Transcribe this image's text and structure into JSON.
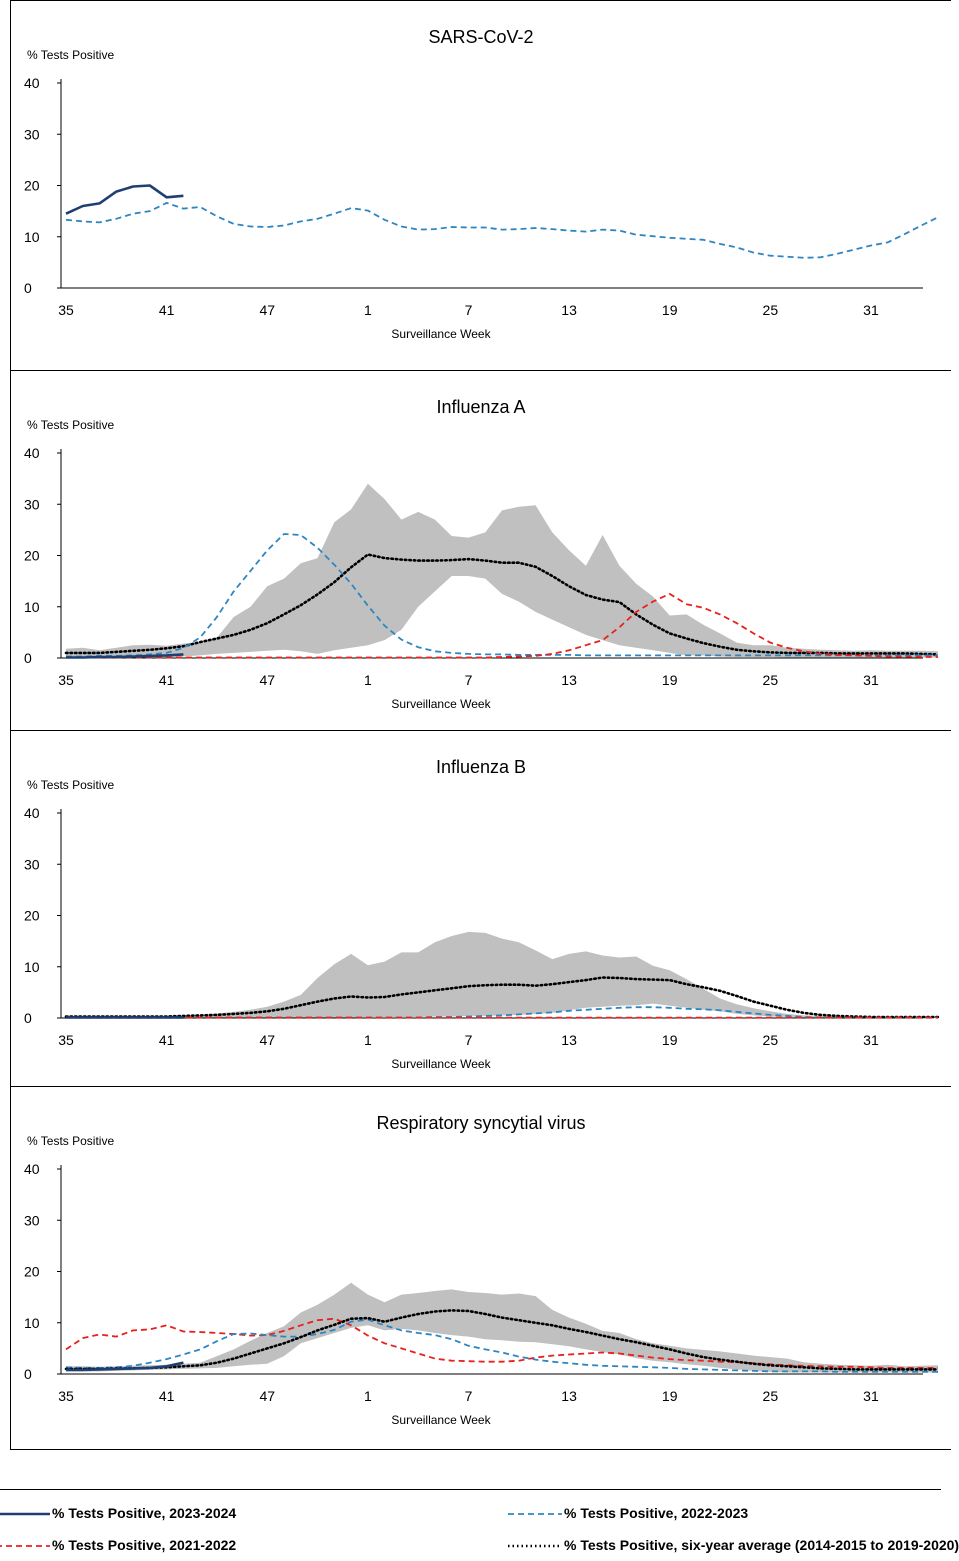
{
  "colors": {
    "s2324": "#1f3f73",
    "s2223": "#2e86c1",
    "s2122": "#e8201e",
    "avg": "#000000",
    "band": "#c0c0c0"
  },
  "chart_data": [
    {
      "type": "line",
      "title": "SARS-CoV-2",
      "ylabel": "% Tests Positive",
      "xlabel": "Surveillance Week",
      "ylim": [
        0,
        40
      ],
      "yticks": [
        "0",
        "10",
        "20",
        "30",
        "40"
      ],
      "xtick_labels": [
        "35",
        "41",
        "47",
        "1",
        "7",
        "13",
        "19",
        "25",
        "31"
      ],
      "series": [
        {
          "key": "s2324",
          "values": [
            14.5,
            16,
            16.5,
            18.8,
            19.8,
            20,
            17.7,
            18
          ]
        },
        {
          "key": "s2223",
          "values": [
            13.3,
            13,
            12.8,
            13.5,
            14.5,
            15,
            16.6,
            15.5,
            15.8,
            14,
            12.5,
            12,
            11.9,
            12.2,
            13,
            13.5,
            14.5,
            15.6,
            15.1,
            13.3,
            12,
            11.4,
            11.5,
            11.9,
            11.8,
            11.8,
            11.4,
            11.5,
            11.7,
            11.5,
            11.2,
            11,
            11.4,
            11.2,
            10.4,
            10.1,
            9.8,
            9.6,
            9.4,
            8.6,
            7.9,
            6.9,
            6.3,
            6.1,
            5.9,
            6.0,
            6.7,
            7.5,
            8.3,
            8.9,
            10.5,
            12.2,
            13.8
          ]
        }
      ]
    },
    {
      "type": "line",
      "title": "Influenza A",
      "ylabel": "% Tests Positive",
      "xlabel": "Surveillance Week",
      "ylim": [
        0,
        40
      ],
      "yticks": [
        "0",
        "10",
        "20",
        "30",
        "40"
      ],
      "xtick_labels": [
        "35",
        "41",
        "47",
        "1",
        "7",
        "13",
        "19",
        "25",
        "31"
      ],
      "band_upper": [
        1.8,
        2.0,
        1.5,
        2.0,
        2.5,
        2.6,
        2.4,
        2.8,
        3,
        4,
        8,
        10,
        14,
        15.5,
        18.5,
        19.5,
        26.5,
        29,
        34,
        31,
        27,
        28.5,
        27,
        23.8,
        23.5,
        24.5,
        28.8,
        29.5,
        29.8,
        24.5,
        21,
        18,
        24,
        18,
        14.5,
        12,
        8.3,
        8.5,
        6.5,
        4.8,
        3,
        2.5,
        2.5,
        2.0,
        1.8,
        1.6,
        1.5,
        1.4,
        1.5,
        1.4,
        1.4,
        1.4,
        1.3
      ],
      "band_lower": [
        0.2,
        0.2,
        0.2,
        0.2,
        0.2,
        0.2,
        0.2,
        0.3,
        0.5,
        0.8,
        1.0,
        1.2,
        1.4,
        1.6,
        1.3,
        0.8,
        1.5,
        2,
        2.5,
        3.5,
        5.5,
        10,
        13,
        16,
        16,
        15.5,
        12.5,
        11,
        9,
        7.5,
        6,
        4.5,
        3.5,
        2.5,
        2,
        1.5,
        1,
        0.5,
        0.5,
        0.3,
        0.2,
        0.2,
        0.2,
        0.1,
        0.1,
        0.1,
        0.1,
        0.1,
        0.1,
        0.1,
        0.1,
        0.1,
        0.1
      ],
      "series": [
        {
          "key": "avg",
          "values": [
            1,
            1,
            1,
            1.2,
            1.4,
            1.6,
            1.9,
            2.3,
            3.1,
            3.8,
            4.5,
            5.5,
            6.8,
            8.5,
            10.3,
            12.4,
            14.8,
            17.7,
            20.2,
            19.5,
            19.2,
            19.0,
            19.0,
            19.1,
            19.3,
            19.0,
            18.6,
            18.6,
            17.8,
            16.0,
            14,
            12.3,
            11.4,
            10.9,
            8.5,
            6.5,
            4.8,
            3.8,
            2.9,
            2.2,
            1.6,
            1.3,
            1.1,
            1.0,
            1.0,
            1.0,
            0.9,
            0.9,
            0.9,
            0.9,
            0.9,
            0.8,
            0.7
          ]
        },
        {
          "key": "s2223",
          "values": [
            0.3,
            0.3,
            0.4,
            0.4,
            0.5,
            0.7,
            1,
            2,
            4,
            8,
            13,
            17,
            21,
            24.2,
            24,
            21.5,
            18.2,
            14.5,
            10.2,
            6.3,
            3.6,
            2.1,
            1.3,
            1.0,
            0.8,
            0.7,
            0.7,
            0.6,
            0.6,
            0.6,
            0.6,
            0.5,
            0.5,
            0.5,
            0.5,
            0.5,
            0.5,
            0.5,
            0.5,
            0.5,
            0.5,
            0.5,
            0.5,
            0.5,
            0.5,
            0.5,
            0.5,
            0.5,
            0.5,
            0.5,
            0.5,
            0.5,
            0.5
          ]
        },
        {
          "key": "s2122",
          "values": [
            0.1,
            0.1,
            0.1,
            0.1,
            0.1,
            0.1,
            0.1,
            0.1,
            0.1,
            0.1,
            0.1,
            0.1,
            0.1,
            0.1,
            0.1,
            0.1,
            0.1,
            0.1,
            0.1,
            0.1,
            0.1,
            0.1,
            0.1,
            0.1,
            0.1,
            0.1,
            0.2,
            0.3,
            0.4,
            0.8,
            1.5,
            2.5,
            3.5,
            6,
            9,
            11,
            12.5,
            10.5,
            9.8,
            8.5,
            6.8,
            4.8,
            3.0,
            2.0,
            1.3,
            0.8,
            0.6,
            0.5,
            0.4,
            0.3,
            0.3,
            0.2,
            0.2
          ]
        },
        {
          "key": "s2324",
          "values": [
            0.1,
            0.1,
            0.2,
            0.2,
            0.3,
            0.4,
            0.5,
            0.7
          ]
        }
      ]
    },
    {
      "type": "line",
      "title": "Influenza B",
      "ylabel": "% Tests Positive",
      "xlabel": "Surveillance Week",
      "ylim": [
        0,
        40
      ],
      "yticks": [
        "0",
        "10",
        "20",
        "30",
        "40"
      ],
      "xtick_labels": [
        "35",
        "41",
        "47",
        "1",
        "7",
        "13",
        "19",
        "25",
        "31"
      ],
      "band_upper": [
        0.4,
        0.4,
        0.4,
        0.4,
        0.4,
        0.4,
        0.4,
        0.5,
        0.6,
        0.9,
        1.2,
        1.6,
        2.2,
        3.2,
        4.5,
        7.8,
        10.5,
        12.5,
        10.3,
        11,
        12.8,
        12.8,
        14.8,
        16,
        16.8,
        16.6,
        15.5,
        14.8,
        13.2,
        11.5,
        12.5,
        13,
        12.2,
        11.8,
        12,
        10.2,
        9.3,
        7.6,
        5.7,
        3.8,
        2.7,
        1.9,
        1.3,
        0.8,
        0.5,
        0.4,
        0.3,
        0.3,
        0.3,
        0.3,
        0.3,
        0.3,
        0.3
      ],
      "band_lower": [
        0.1,
        0.1,
        0.1,
        0.1,
        0.1,
        0.1,
        0.1,
        0.1,
        0.1,
        0.1,
        0.1,
        0.1,
        0.1,
        0.1,
        0.1,
        0.1,
        0.1,
        0.1,
        0.2,
        0.2,
        0.2,
        0.2,
        0.3,
        0.3,
        0.4,
        0.4,
        0.5,
        0.6,
        0.8,
        1.0,
        1.5,
        2.0,
        2.2,
        2.4,
        2.5,
        2.8,
        2.4,
        2.0,
        1.6,
        1.3,
        0.8,
        0.5,
        0.3,
        0.2,
        0.1,
        0.1,
        0.1,
        0.1,
        0.1,
        0.1,
        0.1,
        0.1,
        0.1
      ],
      "series": [
        {
          "key": "avg",
          "values": [
            0.3,
            0.3,
            0.3,
            0.3,
            0.3,
            0.3,
            0.3,
            0.4,
            0.5,
            0.6,
            0.8,
            1.0,
            1.3,
            1.8,
            2.5,
            3.2,
            3.8,
            4.2,
            4.0,
            4.1,
            4.6,
            5.0,
            5.4,
            5.8,
            6.2,
            6.4,
            6.5,
            6.5,
            6.3,
            6.6,
            7.0,
            7.4,
            7.9,
            7.8,
            7.6,
            7.5,
            7.4,
            6.6,
            6.0,
            5.3,
            4.3,
            3.2,
            2.4,
            1.6,
            1.0,
            0.6,
            0.4,
            0.3,
            0.2,
            0.2,
            0.2,
            0.2,
            0.2
          ]
        },
        {
          "key": "s2223",
          "values": [
            0.1,
            0.1,
            0.1,
            0.1,
            0.1,
            0.1,
            0.1,
            0.1,
            0.1,
            0.1,
            0.1,
            0.1,
            0.1,
            0.1,
            0.1,
            0.1,
            0.1,
            0.1,
            0.1,
            0.1,
            0.1,
            0.1,
            0.2,
            0.2,
            0.3,
            0.4,
            0.5,
            0.7,
            0.9,
            1.1,
            1.4,
            1.6,
            1.8,
            2.0,
            2.1,
            2.1,
            2.0,
            1.8,
            1.7,
            1.5,
            1.2,
            0.9,
            0.6,
            0.4,
            0.2,
            0.1,
            0.1,
            0.1,
            0.1,
            0.1,
            0.1,
            0.1,
            0.1
          ]
        },
        {
          "key": "s2122",
          "values": [
            0.05,
            0.05,
            0.05,
            0.05,
            0.05,
            0.05,
            0.05,
            0.05,
            0.05,
            0.05,
            0.05,
            0.05,
            0.05,
            0.05,
            0.05,
            0.05,
            0.05,
            0.05,
            0.05,
            0.05,
            0.05,
            0.05,
            0.05,
            0.05,
            0.05,
            0.05,
            0.05,
            0.05,
            0.05,
            0.05,
            0.05,
            0.05,
            0.05,
            0.05,
            0.05,
            0.05,
            0.05,
            0.05,
            0.05,
            0.05,
            0.05,
            0.05,
            0.05,
            0.05,
            0.05,
            0.05,
            0.05,
            0.05,
            0.05,
            0.05,
            0.05,
            0.05,
            0.05
          ]
        },
        {
          "key": "s2324",
          "values": [
            0.1,
            0.1,
            0.1,
            0.1,
            0.1,
            0.1,
            0.1,
            0.1
          ]
        }
      ]
    },
    {
      "type": "line",
      "title": "Respiratory syncytial virus",
      "ylabel": "% Tests Positive",
      "xlabel": "Surveillance Week",
      "ylim": [
        0,
        40
      ],
      "yticks": [
        "0",
        "10",
        "20",
        "30",
        "40"
      ],
      "xtick_labels": [
        "35",
        "41",
        "47",
        "1",
        "7",
        "13",
        "19",
        "25",
        "31"
      ],
      "band_upper": [
        1.5,
        1.5,
        1.4,
        1.5,
        1.6,
        1.7,
        1.8,
        2.0,
        2.2,
        3.5,
        4.8,
        6.5,
        8,
        9.3,
        12,
        13.5,
        15.5,
        17.8,
        15.5,
        14,
        15.5,
        15.8,
        16.2,
        16.5,
        16.0,
        15.8,
        15.5,
        15.7,
        15.2,
        12.5,
        11,
        9.8,
        8.4,
        8.0,
        6.8,
        6.0,
        5.5,
        5.0,
        4.7,
        4.4,
        4.0,
        3.6,
        3.3,
        3.0,
        2.3,
        2.0,
        1.8,
        1.7,
        1.6,
        1.8,
        1.5,
        1.6,
        1.7
      ],
      "band_lower": [
        0.5,
        0.5,
        0.5,
        0.6,
        0.7,
        0.8,
        0.9,
        1.0,
        1.1,
        1.2,
        1.5,
        1.8,
        2.0,
        3.5,
        6,
        7,
        8,
        9,
        9.5,
        8.5,
        8.8,
        8.5,
        8.0,
        7.6,
        7.3,
        6.8,
        6.6,
        6.3,
        6.2,
        5.8,
        5.4,
        4.8,
        4.3,
        3.8,
        3.1,
        2.6,
        2.3,
        1.9,
        1.6,
        1.2,
        0.9,
        0.6,
        0.4,
        0.3,
        0.3,
        0.3,
        0.3,
        0.3,
        0.3,
        0.3,
        0.3,
        0.3,
        0.3
      ],
      "series": [
        {
          "key": "s2122",
          "values": [
            4.8,
            7,
            7.7,
            7.3,
            8.5,
            8.7,
            9.5,
            8.3,
            8.2,
            8.0,
            7.8,
            7.5,
            7.6,
            8.4,
            9.5,
            10.5,
            10.8,
            9.5,
            7.5,
            6,
            5,
            4,
            3,
            2.6,
            2.5,
            2.4,
            2.4,
            2.6,
            3.2,
            3.6,
            3.8,
            4.0,
            4.2,
            4.0,
            3.6,
            3.2,
            2.9,
            2.7,
            2.6,
            2.4,
            2.3,
            2.1,
            1.9,
            1.7,
            1.6,
            1.5,
            1.4,
            1.4,
            1.3,
            1.2,
            1.2,
            1.2,
            1.2
          ]
        },
        {
          "key": "s2223",
          "values": [
            1.3,
            1.2,
            1.2,
            1.3,
            1.6,
            2.2,
            2.9,
            3.8,
            4.8,
            6.4,
            7.8,
            7.9,
            7.6,
            7.3,
            7.3,
            7.8,
            8.6,
            10.2,
            10.6,
            9.5,
            8.5,
            8.0,
            7.6,
            6.8,
            5.5,
            4.8,
            4.2,
            3.4,
            2.8,
            2.4,
            2.1,
            1.8,
            1.6,
            1.5,
            1.4,
            1.3,
            1.2,
            1.0,
            0.9,
            0.8,
            0.7,
            0.6,
            0.5,
            0.5,
            0.5,
            0.5,
            0.4,
            0.4,
            0.4,
            0.4,
            0.4,
            0.4,
            0.4
          ]
        },
        {
          "key": "avg",
          "values": [
            1.0,
            1.0,
            1.0,
            1.1,
            1.1,
            1.2,
            1.3,
            1.5,
            1.7,
            2.2,
            3.0,
            4.0,
            5.0,
            6.0,
            7.2,
            8.5,
            9.6,
            10.8,
            10.9,
            10.2,
            11.0,
            11.7,
            12.2,
            12.4,
            12.3,
            11.7,
            11.0,
            10.5,
            10.0,
            9.5,
            8.8,
            8.2,
            7.5,
            6.8,
            6.2,
            5.5,
            4.8,
            4.0,
            3.3,
            2.8,
            2.4,
            2.0,
            1.7,
            1.5,
            1.3,
            1.1,
            1.0,
            0.9,
            0.9,
            0.9,
            0.9,
            0.9,
            0.9
          ]
        },
        {
          "key": "s2324",
          "values": [
            0.8,
            0.8,
            0.9,
            1.0,
            1.1,
            1.2,
            1.5,
            2.2
          ]
        }
      ]
    }
  ],
  "legend": [
    {
      "key": "s2324",
      "label": "% Tests Positive, 2023-2024"
    },
    {
      "key": "s2223",
      "label": "% Tests Positive, 2022-2023"
    },
    {
      "key": "s2122",
      "label": "% Tests Positive, 2021-2022"
    },
    {
      "key": "avg",
      "label": "% Tests Positive, six-year average (2014-2015 to 2019-2020)"
    }
  ]
}
